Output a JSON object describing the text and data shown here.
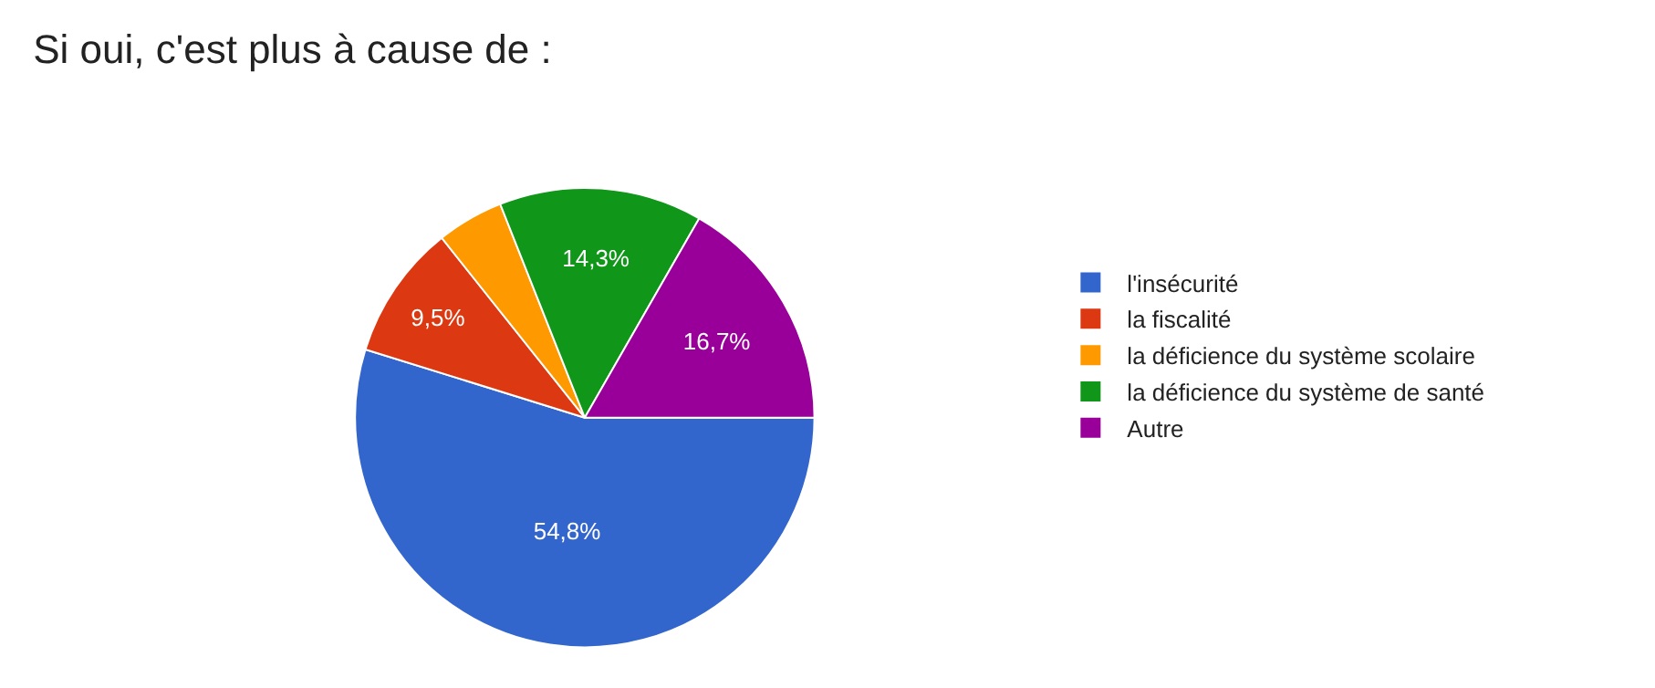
{
  "chart_data": {
    "type": "pie",
    "title": "Si oui, c'est plus à cause de :",
    "categories": [
      "l'insécurité",
      "la fiscalité",
      "la déficience du système scolaire",
      "la déficience du système de santé",
      "Autre"
    ],
    "values": [
      54.8,
      9.5,
      4.7,
      14.3,
      16.7
    ],
    "value_labels": [
      "54,8%",
      "9,5%",
      null,
      "14,3%",
      "16,7%"
    ],
    "colors": [
      "#3366cc",
      "#dc3912",
      "#ff9900",
      "#109618",
      "#990099"
    ],
    "legend": "right"
  }
}
